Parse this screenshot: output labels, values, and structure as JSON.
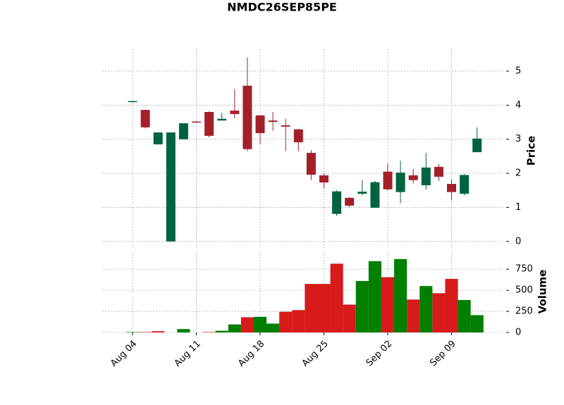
{
  "chart_data": {
    "type": "candlestick",
    "title": "NMDC26SEP85PE",
    "ylabel": "Price",
    "y2label": "Volume",
    "categories": [
      "Aug 04",
      null,
      null,
      null,
      null,
      "Aug 11",
      null,
      null,
      null,
      null,
      "Aug 18",
      null,
      null,
      null,
      null,
      "Aug 25",
      null,
      null,
      null,
      null,
      "Sep 02",
      null,
      null,
      null,
      null,
      "Sep 09",
      null,
      null
    ],
    "open": [
      4.1,
      3.86,
      2.85,
      0.0,
      3.0,
      3.52,
      3.8,
      3.55,
      3.84,
      4.57,
      3.7,
      3.55,
      3.41,
      3.29,
      2.6,
      1.94,
      0.81,
      1.28,
      1.4,
      0.99,
      2.05,
      1.45,
      1.94,
      1.65,
      2.19,
      1.69,
      1.4,
      2.62
    ],
    "high": [
      4.13,
      3.87,
      3.2,
      3.2,
      3.47,
      3.53,
      3.82,
      3.78,
      4.47,
      5.4,
      3.71,
      3.8,
      3.6,
      3.3,
      2.68,
      2.0,
      1.5,
      1.3,
      1.8,
      1.78,
      2.28,
      2.37,
      2.12,
      2.6,
      2.27,
      1.82,
      1.98,
      3.35
    ],
    "low": [
      4.08,
      3.32,
      2.85,
      0.0,
      3.0,
      3.5,
      3.05,
      3.55,
      3.62,
      2.65,
      2.85,
      3.25,
      2.65,
      2.65,
      1.8,
      1.55,
      0.75,
      1.0,
      1.35,
      0.99,
      1.5,
      1.12,
      1.7,
      1.52,
      1.78,
      1.2,
      1.35,
      2.62
    ],
    "close": [
      4.12,
      3.35,
      3.2,
      3.2,
      3.47,
      3.5,
      3.1,
      3.6,
      3.74,
      2.71,
      3.18,
      3.51,
      3.37,
      2.91,
      1.96,
      1.73,
      1.47,
      1.05,
      1.46,
      1.74,
      1.53,
      2.02,
      1.8,
      2.17,
      1.9,
      1.45,
      1.95,
      3.02
    ],
    "up_color": "#006340",
    "down_color": "#a31f2a",
    "volume": [
      5,
      5,
      15,
      0,
      40,
      0,
      5,
      20,
      95,
      180,
      185,
      105,
      245,
      265,
      575,
      575,
      815,
      330,
      610,
      845,
      655,
      870,
      390,
      550,
      465,
      635,
      385,
      205
    ],
    "volume_colors": [
      "#007f00",
      "#d71a1a",
      "#d71a1a",
      "#007f00",
      "#007f00",
      "#d71a1a",
      "#d71a1a",
      "#007f00",
      "#007f00",
      "#d71a1a",
      "#007f00",
      "#007f00",
      "#d71a1a",
      "#d71a1a",
      "#d71a1a",
      "#d71a1a",
      "#d71a1a",
      "#d71a1a",
      "#007f00",
      "#007f00",
      "#d71a1a",
      "#007f00",
      "#d71a1a",
      "#007f00",
      "#d71a1a",
      "#d71a1a",
      "#007f00",
      "#007f00"
    ],
    "ylim": [
      -0.19,
      5.64
    ],
    "yticks": [
      0,
      1,
      2,
      3,
      4,
      5
    ],
    "y2lim": [
      0,
      960
    ],
    "y2ticks": [
      0,
      250,
      500,
      750
    ],
    "grid": true
  }
}
